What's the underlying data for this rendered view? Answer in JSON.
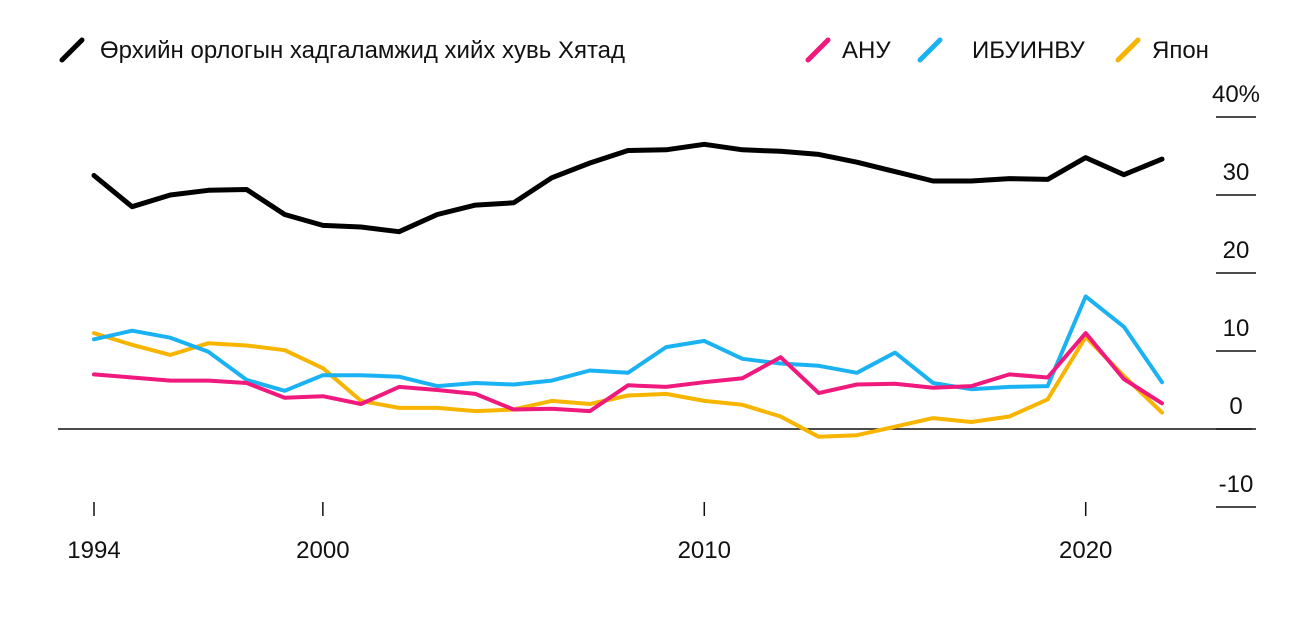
{
  "chart_data": {
    "type": "line",
    "x_ticks": [
      1994,
      2000,
      2010,
      2020
    ],
    "y_ticks": [
      {
        "value": 40,
        "label": "40%"
      },
      {
        "value": 30,
        "label": "30"
      },
      {
        "value": 20,
        "label": "20"
      },
      {
        "value": 10,
        "label": "10"
      },
      {
        "value": 0,
        "label": "0"
      },
      {
        "value": -10,
        "label": "-10"
      }
    ],
    "xlim": [
      1994,
      2022
    ],
    "ylim": [
      -10,
      40
    ],
    "grid": false,
    "legend_position": "top",
    "series": [
      {
        "name": "Өрхийн орлогын хадгаламжид хийх хувь Хятад",
        "color": "#000000",
        "x": [
          1994,
          1995,
          1996,
          1997,
          1998,
          1999,
          2000,
          2001,
          2002,
          2003,
          2004,
          2005,
          2006,
          2007,
          2008,
          2009,
          2010,
          2011,
          2012,
          2013,
          2014,
          2015,
          2016,
          2017,
          2018,
          2019,
          2020,
          2021,
          2022
        ],
        "values": [
          32.5,
          28.5,
          30.0,
          30.6,
          30.7,
          27.5,
          26.1,
          25.9,
          25.3,
          27.5,
          28.7,
          29.0,
          32.2,
          34.1,
          35.7,
          35.8,
          36.5,
          35.8,
          35.6,
          35.2,
          34.2,
          33.0,
          31.8,
          31.8,
          32.1,
          32.0,
          34.8,
          32.6,
          34.6
        ]
      },
      {
        "name": "АНУ",
        "color": "#f0197d",
        "x": [
          1994,
          1995,
          1996,
          1997,
          1998,
          1999,
          2000,
          2001,
          2002,
          2003,
          2004,
          2005,
          2006,
          2007,
          2008,
          2009,
          2010,
          2011,
          2012,
          2013,
          2014,
          2015,
          2016,
          2017,
          2018,
          2019,
          2020,
          2021,
          2022
        ],
        "values": [
          7.0,
          6.6,
          6.2,
          6.2,
          5.9,
          4.0,
          4.2,
          3.2,
          5.4,
          5.0,
          4.5,
          2.5,
          2.6,
          2.3,
          5.6,
          5.4,
          6.0,
          6.5,
          9.2,
          4.6,
          5.7,
          5.8,
          5.3,
          5.5,
          7.0,
          6.6,
          12.3,
          6.4,
          3.3
        ]
      },
      {
        "name": "ИБУИНВУ",
        "color": "#1ab2f2",
        "x": [
          1994,
          1995,
          1996,
          1997,
          1998,
          1999,
          2000,
          2001,
          2002,
          2003,
          2004,
          2005,
          2006,
          2007,
          2008,
          2009,
          2010,
          2011,
          2012,
          2013,
          2014,
          2015,
          2016,
          2017,
          2018,
          2019,
          2020,
          2021,
          2022
        ],
        "values": [
          11.5,
          12.6,
          11.7,
          9.9,
          6.3,
          4.9,
          6.9,
          6.9,
          6.7,
          5.5,
          5.9,
          5.7,
          6.2,
          7.5,
          7.2,
          10.5,
          11.3,
          9.0,
          8.4,
          8.1,
          7.2,
          9.8,
          5.9,
          5.1,
          5.4,
          5.5,
          17.0,
          13.1,
          6.0
        ]
      },
      {
        "name": "Япон",
        "color": "#f7b500",
        "x": [
          1994,
          1995,
          1996,
          1997,
          1998,
          1999,
          2000,
          2001,
          2002,
          2003,
          2004,
          2005,
          2006,
          2007,
          2008,
          2009,
          2010,
          2011,
          2012,
          2013,
          2014,
          2015,
          2016,
          2017,
          2018,
          2019,
          2020,
          2021,
          2022
        ],
        "values": [
          12.3,
          10.8,
          9.5,
          11.0,
          10.7,
          10.1,
          7.8,
          3.6,
          2.7,
          2.7,
          2.3,
          2.5,
          3.6,
          3.2,
          4.3,
          4.5,
          3.6,
          3.1,
          1.6,
          -1.0,
          -0.8,
          0.3,
          1.4,
          0.9,
          1.6,
          3.8,
          11.8,
          6.8,
          2.1
        ]
      }
    ]
  }
}
